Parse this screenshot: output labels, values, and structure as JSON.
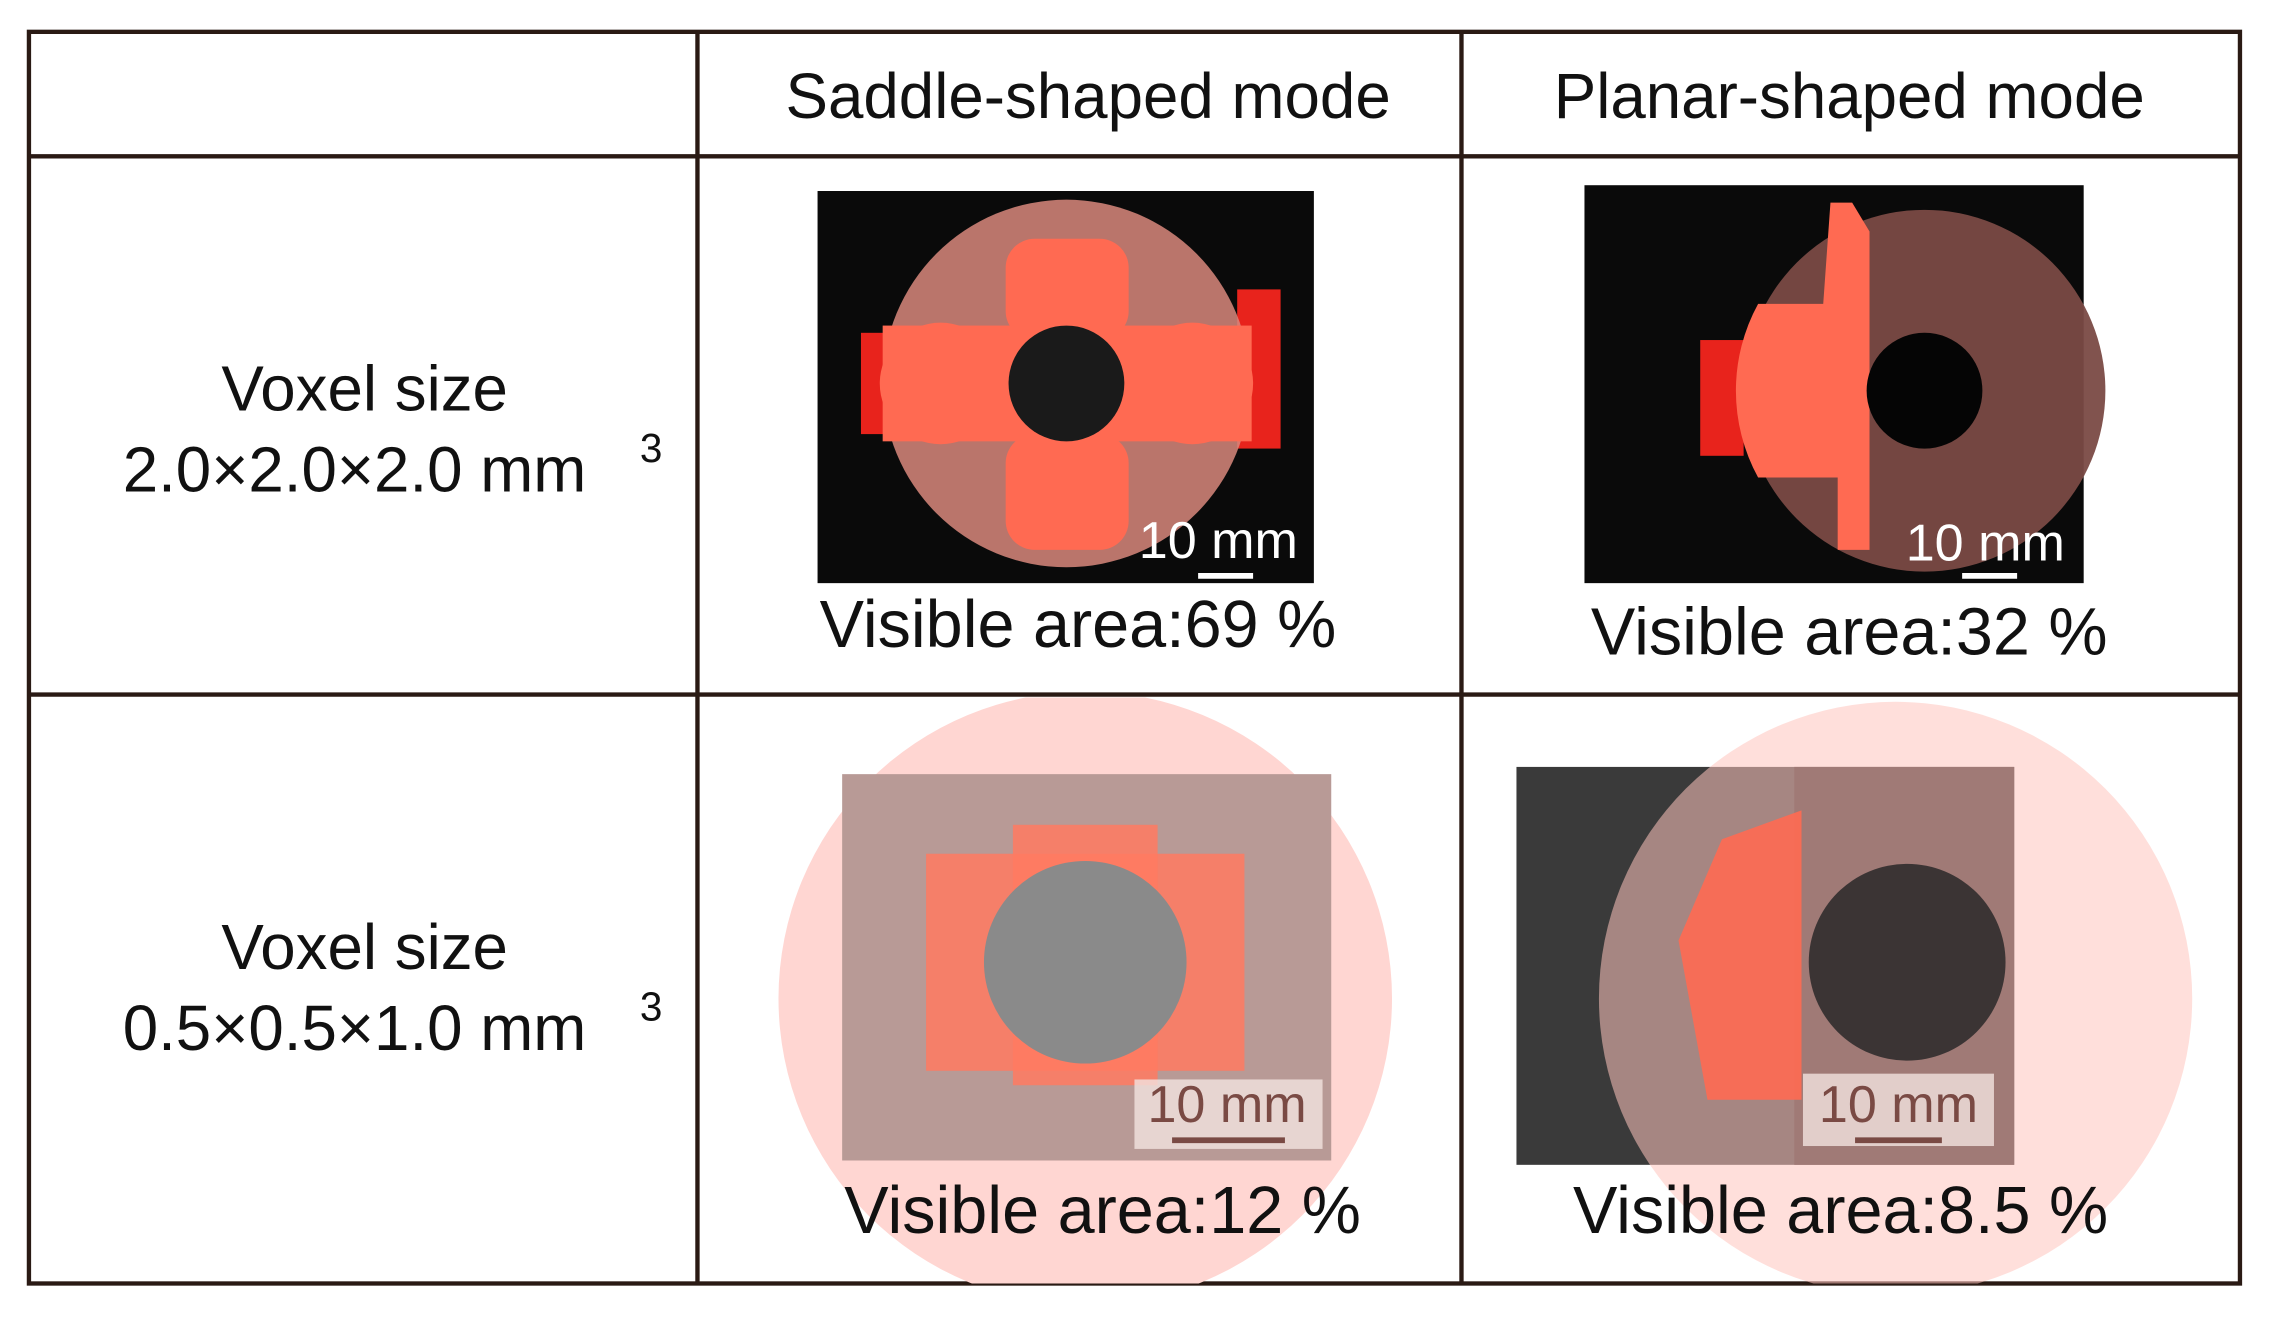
{
  "table": {
    "header": {
      "columns": [
        "Saddle-shaped mode",
        "Planar-shaped mode"
      ]
    },
    "rows": [
      {
        "label": {
          "line1": "Voxel size",
          "line2": "2.0×2.0×2.0 mm",
          "sup": "3"
        },
        "cells": [
          {
            "scale_bar": "10 mm",
            "caption": "Visible area:69 %"
          },
          {
            "scale_bar": "10 mm",
            "caption": "Visible area:32 %"
          }
        ]
      },
      {
        "label": {
          "line1": "Voxel size",
          "line2": "0.5×0.5×1.0 mm",
          "sup": "3"
        },
        "cells": [
          {
            "scale_bar": "10 mm",
            "caption": "Visible area:12 %"
          },
          {
            "scale_bar": "10 mm",
            "caption": "Visible area:8.5 %"
          }
        ]
      }
    ]
  }
}
